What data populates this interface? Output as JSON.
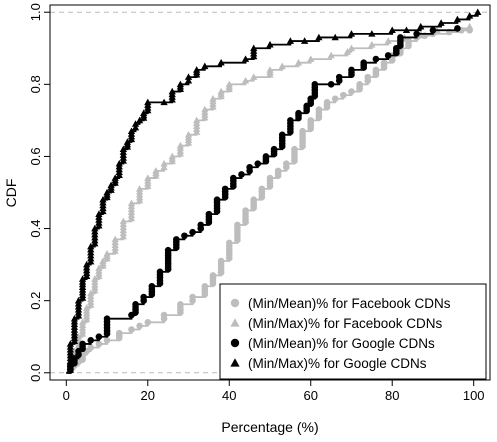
{
  "chart_data": {
    "type": "line",
    "title": "",
    "xlabel": "Percentage (%)",
    "ylabel": "CDF",
    "xlim": [
      -4,
      104
    ],
    "ylim": [
      -0.02,
      1.02
    ],
    "x_ticks": [
      0,
      20,
      40,
      60,
      80,
      100
    ],
    "x_tick_labels": [
      "0",
      "20",
      "40",
      "60",
      "80",
      "100"
    ],
    "y_ticks": [
      0.0,
      0.2,
      0.4,
      0.6,
      0.8,
      1.0
    ],
    "y_tick_labels": [
      "0.0",
      "0.2",
      "0.4",
      "0.6",
      "0.8",
      "1.0"
    ],
    "reference_lines_y": [
      0,
      1
    ],
    "grid": false,
    "legend_position": "bottom-right",
    "series": [
      {
        "name": "(Min/Mean)% for Facebook CDNs",
        "color": "#bdbdbd",
        "marker": "circle",
        "points": [
          [
            0,
            0
          ],
          [
            1,
            0.01
          ],
          [
            2,
            0.02
          ],
          [
            3,
            0.03
          ],
          [
            4,
            0.05
          ],
          [
            5,
            0.06
          ],
          [
            6,
            0.07
          ],
          [
            8,
            0.08
          ],
          [
            10,
            0.09
          ],
          [
            13,
            0.11
          ],
          [
            16,
            0.12
          ],
          [
            18,
            0.13
          ],
          [
            20,
            0.14
          ],
          [
            24,
            0.16
          ],
          [
            28,
            0.19
          ],
          [
            31,
            0.21
          ],
          [
            34,
            0.24
          ],
          [
            36,
            0.27
          ],
          [
            38,
            0.31
          ],
          [
            40,
            0.36
          ],
          [
            42,
            0.41
          ],
          [
            44,
            0.45
          ],
          [
            46,
            0.48
          ],
          [
            48,
            0.51
          ],
          [
            50,
            0.54
          ],
          [
            52,
            0.56
          ],
          [
            54,
            0.58
          ],
          [
            56,
            0.62
          ],
          [
            58,
            0.67
          ],
          [
            60,
            0.7
          ],
          [
            62,
            0.73
          ],
          [
            64,
            0.75
          ],
          [
            66,
            0.76
          ],
          [
            68,
            0.77
          ],
          [
            70,
            0.78
          ],
          [
            72,
            0.8
          ],
          [
            74,
            0.82
          ],
          [
            76,
            0.84
          ],
          [
            78,
            0.86
          ],
          [
            80,
            0.88
          ],
          [
            82,
            0.9
          ],
          [
            84,
            0.92
          ],
          [
            86,
            0.93
          ],
          [
            88,
            0.935
          ],
          [
            90,
            0.94
          ],
          [
            94,
            0.945
          ],
          [
            97,
            0.95
          ],
          [
            99,
            0.95
          ]
        ]
      },
      {
        "name": "(Min/Max)% for Facebook CDNs",
        "color": "#bdbdbd",
        "marker": "triangle",
        "points": [
          [
            0,
            0
          ],
          [
            1,
            0.03
          ],
          [
            2,
            0.06
          ],
          [
            3,
            0.1
          ],
          [
            4,
            0.14
          ],
          [
            5,
            0.18
          ],
          [
            6,
            0.22
          ],
          [
            7,
            0.26
          ],
          [
            8,
            0.29
          ],
          [
            9,
            0.31
          ],
          [
            10,
            0.33
          ],
          [
            12,
            0.37
          ],
          [
            14,
            0.42
          ],
          [
            16,
            0.47
          ],
          [
            18,
            0.51
          ],
          [
            20,
            0.54
          ],
          [
            22,
            0.56
          ],
          [
            24,
            0.58
          ],
          [
            26,
            0.6
          ],
          [
            28,
            0.63
          ],
          [
            30,
            0.66
          ],
          [
            32,
            0.7
          ],
          [
            34,
            0.73
          ],
          [
            36,
            0.76
          ],
          [
            38,
            0.78
          ],
          [
            40,
            0.8
          ],
          [
            44,
            0.81
          ],
          [
            46,
            0.82
          ],
          [
            50,
            0.84
          ],
          [
            53,
            0.85
          ],
          [
            57,
            0.86
          ],
          [
            60,
            0.87
          ],
          [
            65,
            0.88
          ],
          [
            69,
            0.89
          ],
          [
            70,
            0.9
          ],
          [
            75,
            0.91
          ],
          [
            79,
            0.92
          ],
          [
            83,
            0.93
          ],
          [
            87,
            0.94
          ],
          [
            91,
            0.95
          ],
          [
            96,
            0.955
          ],
          [
            99,
            0.96
          ]
        ]
      },
      {
        "name": "(Min/Mean)% for Google CDNs",
        "color": "#000000",
        "marker": "circle",
        "points": [
          [
            0,
            0
          ],
          [
            1,
            0.02
          ],
          [
            2,
            0.04
          ],
          [
            3,
            0.06
          ],
          [
            4,
            0.08
          ],
          [
            6,
            0.09
          ],
          [
            8,
            0.1
          ],
          [
            10,
            0.15
          ],
          [
            16,
            0.16
          ],
          [
            17,
            0.19
          ],
          [
            19,
            0.21
          ],
          [
            21,
            0.24
          ],
          [
            23,
            0.28
          ],
          [
            25,
            0.34
          ],
          [
            27,
            0.37
          ],
          [
            29,
            0.38
          ],
          [
            31,
            0.39
          ],
          [
            33,
            0.41
          ],
          [
            35,
            0.44
          ],
          [
            37,
            0.48
          ],
          [
            39,
            0.51
          ],
          [
            41,
            0.54
          ],
          [
            43,
            0.55
          ],
          [
            45,
            0.57
          ],
          [
            47,
            0.58
          ],
          [
            49,
            0.6
          ],
          [
            51,
            0.62
          ],
          [
            53,
            0.66
          ],
          [
            55,
            0.7
          ],
          [
            57,
            0.72
          ],
          [
            59,
            0.74
          ],
          [
            60,
            0.76
          ],
          [
            61,
            0.8
          ],
          [
            65,
            0.8
          ],
          [
            67,
            0.82
          ],
          [
            70,
            0.84
          ],
          [
            73,
            0.86
          ],
          [
            76,
            0.87
          ],
          [
            79,
            0.88
          ],
          [
            81,
            0.9
          ],
          [
            82,
            0.93
          ],
          [
            86,
            0.94
          ],
          [
            90,
            0.95
          ],
          [
            96,
            0.955
          ]
        ]
      },
      {
        "name": "(Min/Max)% for Google CDNs",
        "color": "#000000",
        "marker": "triangle",
        "points": [
          [
            0,
            0
          ],
          [
            1,
            0.08
          ],
          [
            2,
            0.15
          ],
          [
            3,
            0.2
          ],
          [
            4,
            0.26
          ],
          [
            5,
            0.3
          ],
          [
            6,
            0.35
          ],
          [
            7,
            0.4
          ],
          [
            8,
            0.44
          ],
          [
            9,
            0.48
          ],
          [
            10,
            0.5
          ],
          [
            11,
            0.52
          ],
          [
            12,
            0.54
          ],
          [
            13,
            0.58
          ],
          [
            14,
            0.62
          ],
          [
            15,
            0.64
          ],
          [
            16,
            0.67
          ],
          [
            17,
            0.69
          ],
          [
            18,
            0.7
          ],
          [
            19,
            0.72
          ],
          [
            20,
            0.75
          ],
          [
            24,
            0.75
          ],
          [
            26,
            0.78
          ],
          [
            28,
            0.8
          ],
          [
            30,
            0.82
          ],
          [
            32,
            0.84
          ],
          [
            34,
            0.85
          ],
          [
            38,
            0.86
          ],
          [
            44,
            0.87
          ],
          [
            46,
            0.9
          ],
          [
            50,
            0.91
          ],
          [
            55,
            0.92
          ],
          [
            62,
            0.93
          ],
          [
            70,
            0.94
          ],
          [
            80,
            0.95
          ],
          [
            87,
            0.96
          ],
          [
            92,
            0.97
          ],
          [
            96,
            0.98
          ],
          [
            99,
            0.99
          ],
          [
            101,
            1.0
          ]
        ]
      }
    ]
  }
}
